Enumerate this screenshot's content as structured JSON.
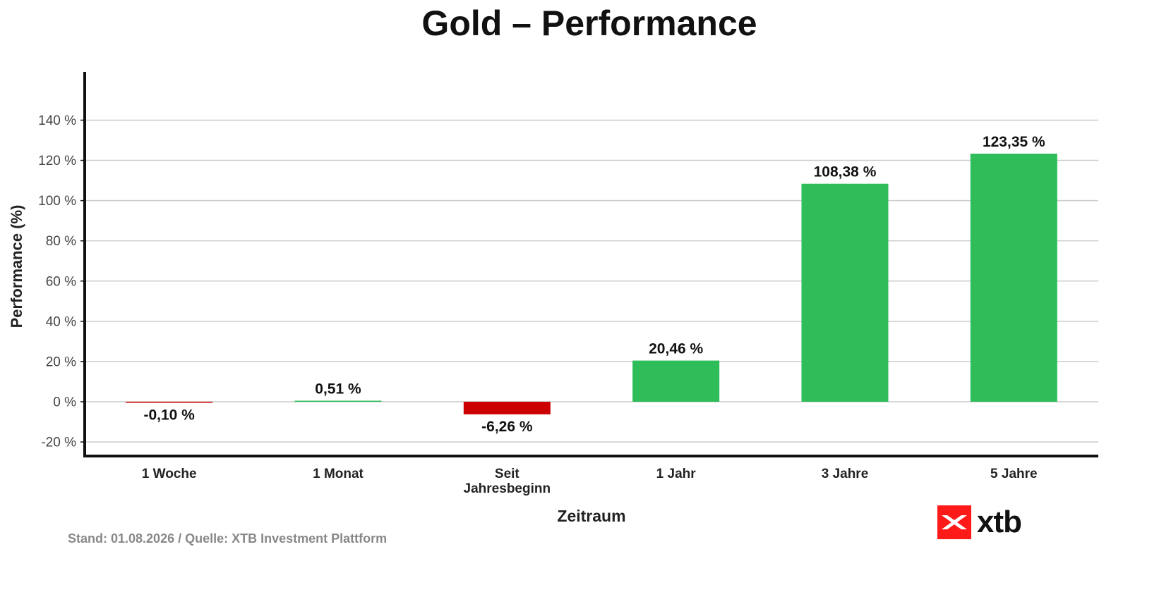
{
  "colors": {
    "positive": "#2ebd59",
    "negative": "#cc0000",
    "grid": "#cccccc",
    "axis": "#111111",
    "logo": "#ff1a1a"
  },
  "footer": {
    "source": "Stand: 01.08.2026 / Quelle: XTB Investment Plattform"
  },
  "logo": {
    "text": "xtb",
    "icon": "xtb-x-icon"
  },
  "chart_data": {
    "type": "bar",
    "title": "Gold – Performance",
    "xlabel": "Zeitraum",
    "ylabel": "Performance (%)",
    "categories": [
      [
        "1 Woche"
      ],
      [
        "1 Monat"
      ],
      [
        "Seit",
        "Jahresbeginn"
      ],
      [
        "1 Jahr"
      ],
      [
        "3 Jahre"
      ],
      [
        "5 Jahre"
      ]
    ],
    "values": [
      -0.1,
      0.51,
      -6.26,
      20.46,
      108.38,
      123.35
    ],
    "data_labels": [
      "-0,10 %",
      "0,51 %",
      "-6,26 %",
      "20,46 %",
      "108,38 %",
      "123,35 %"
    ],
    "yticks": [
      -20,
      0,
      20,
      40,
      60,
      80,
      100,
      120,
      140
    ],
    "ytick_labels": [
      "-20 %",
      "0 %",
      "20 %",
      "40 %",
      "60 %",
      "80 %",
      "100 %",
      "120 %",
      "140 %"
    ],
    "ylim": [
      -27,
      164
    ],
    "grid": true
  }
}
